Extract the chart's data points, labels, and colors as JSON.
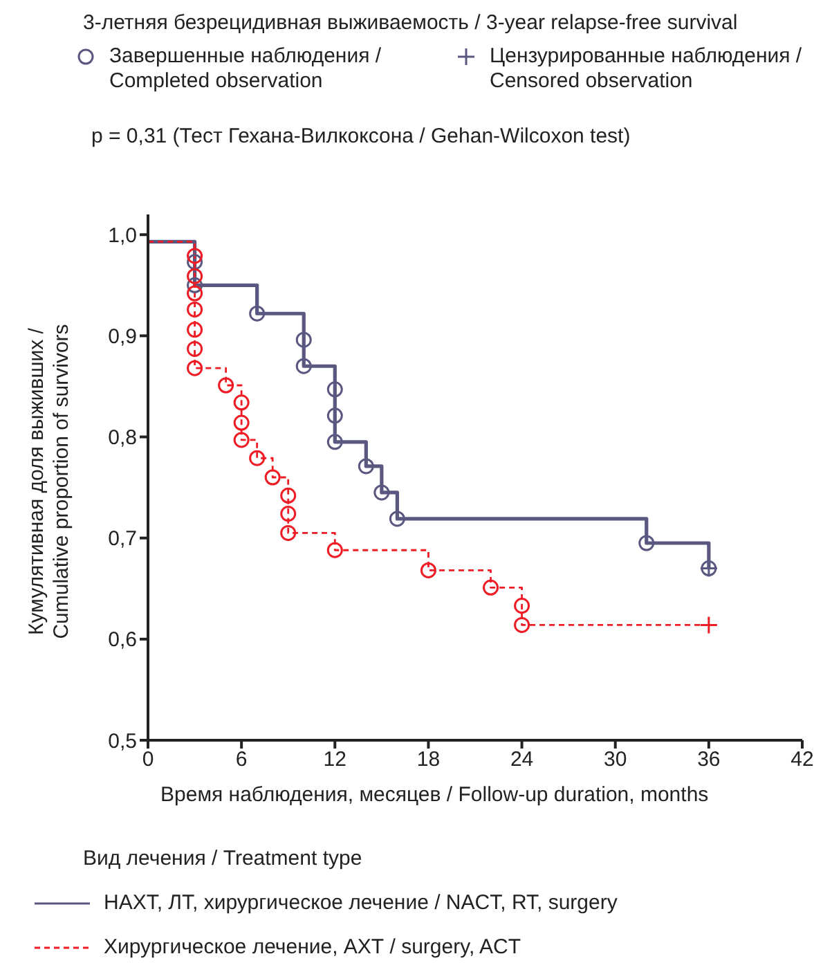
{
  "chart_data": {
    "type": "step",
    "title": "3-летняя безрецидивная выживаемость / 3-year relapse-free survival",
    "xlabel": "Время наблюдения, месяцев / Follow-up duration, months",
    "ylabel": "Кумулятивная доля выживших / Cumulative proportion of survivors",
    "legend_title": "Вид лечения / Treatment type",
    "annotations": [
      "p = 0,31 (Тест Гехана-Вилкоксона / Gehan-Wilcoxon test)"
    ],
    "xlim": [
      0,
      42
    ],
    "xticks": [
      0,
      6,
      12,
      18,
      24,
      30,
      36,
      42
    ],
    "ylim": [
      0.5,
      1.02
    ],
    "yticks": [
      {
        "value": 0.5,
        "label": "0,5"
      },
      {
        "value": 0.6,
        "label": "0,6"
      },
      {
        "value": 0.7,
        "label": "0,7"
      },
      {
        "value": 0.8,
        "label": "0,8"
      },
      {
        "value": 0.9,
        "label": "0,9"
      },
      {
        "value": 1.0,
        "label": "1,0"
      }
    ],
    "grid": false,
    "legend": "bottom",
    "series": [
      {
        "name": "НАХТ, ЛТ, хирургическое лечение / NACT, RT, surgery",
        "color": "#5a5880",
        "line_style": "solid",
        "marker": "none",
        "x": [
          0,
          3,
          3,
          7,
          10,
          10,
          12,
          12,
          12,
          14,
          15,
          16,
          32,
          36
        ],
        "values": [
          0.993,
          0.973,
          0.95,
          0.922,
          0.896,
          0.87,
          0.847,
          0.821,
          0.795,
          0.771,
          0.745,
          0.719,
          0.695,
          0.67
        ]
      },
      {
        "name": "Хирургическое лечение, АХТ / surgery, ACT",
        "color": "#ee1c25",
        "line_style": "dashed",
        "marker": "none",
        "x": [
          0,
          3,
          3,
          3,
          3,
          3,
          3,
          3,
          5,
          6,
          6,
          6,
          7,
          8,
          9,
          9,
          9,
          12,
          18,
          22,
          24,
          24,
          36
        ],
        "values": [
          0.993,
          0.979,
          0.959,
          0.942,
          0.926,
          0.906,
          0.887,
          0.868,
          0.851,
          0.834,
          0.814,
          0.797,
          0.779,
          0.76,
          0.742,
          0.724,
          0.705,
          0.688,
          0.668,
          0.651,
          0.633,
          0.614,
          0.614
        ]
      },
      {
        "name": "Завершенные наблюдения / Completed observation",
        "type": "scatter",
        "color": "#5a5880",
        "marker": "circle",
        "x": [
          3,
          3,
          7,
          10,
          10,
          12,
          12,
          12,
          14,
          15,
          16,
          32,
          36,
          3,
          3,
          3,
          3,
          3,
          3,
          3,
          5,
          6,
          6,
          6,
          7,
          8,
          9,
          9,
          9,
          12,
          18,
          22,
          24,
          24
        ],
        "values": [
          0.973,
          0.95,
          0.922,
          0.896,
          0.87,
          0.847,
          0.821,
          0.795,
          0.771,
          0.745,
          0.719,
          0.695,
          0.67,
          0.979,
          0.959,
          0.942,
          0.926,
          0.906,
          0.887,
          0.868,
          0.851,
          0.834,
          0.814,
          0.797,
          0.779,
          0.76,
          0.742,
          0.724,
          0.705,
          0.688,
          0.668,
          0.651,
          0.633,
          0.614
        ],
        "colors": [
          "#5a5880",
          "#5a5880",
          "#5a5880",
          "#5a5880",
          "#5a5880",
          "#5a5880",
          "#5a5880",
          "#5a5880",
          "#5a5880",
          "#5a5880",
          "#5a5880",
          "#5a5880",
          "#5a5880",
          "#ee1c25",
          "#ee1c25",
          "#ee1c25",
          "#ee1c25",
          "#ee1c25",
          "#ee1c25",
          "#ee1c25",
          "#ee1c25",
          "#ee1c25",
          "#ee1c25",
          "#ee1c25",
          "#ee1c25",
          "#ee1c25",
          "#ee1c25",
          "#ee1c25",
          "#ee1c25",
          "#ee1c25",
          "#ee1c25",
          "#ee1c25",
          "#ee1c25",
          "#ee1c25"
        ]
      },
      {
        "name": "Цензурированные наблюдения / Censored observation",
        "type": "scatter",
        "color": "#5a5880",
        "marker": "cross",
        "x": [
          36,
          36
        ],
        "values": [
          0.67,
          0.614
        ],
        "colors": [
          "#5a5880",
          "#ee1c25"
        ]
      }
    ]
  }
}
